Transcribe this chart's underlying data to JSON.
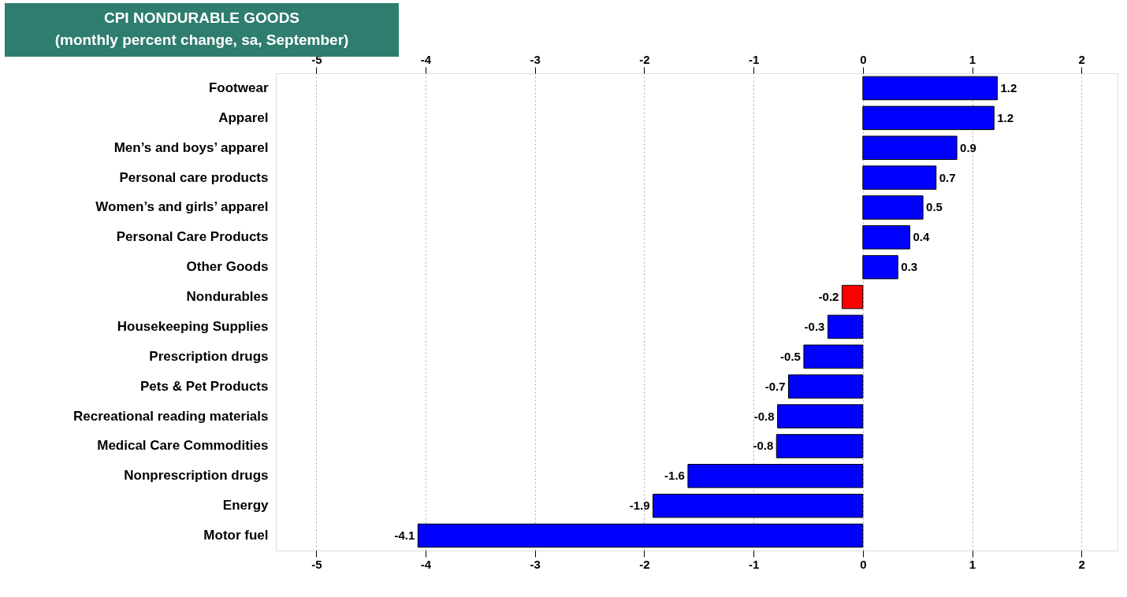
{
  "chart_data": {
    "type": "bar",
    "orientation": "horizontal",
    "title": "CPI NONDURABLE GOODS",
    "subtitle": "(monthly percent change, sa,  September)",
    "categories": [
      "Footwear",
      "Apparel",
      "Men’s and boys’ apparel",
      "Personal care products",
      "Women’s and girls’ apparel",
      "Personal Care Products",
      "Other Goods",
      "Nondurables",
      "Housekeeping Supplies",
      "Prescription drugs",
      "Pets & Pet Products",
      "Recreational reading materials",
      "Medical Care Commodities",
      "Nonprescription drugs",
      "Energy",
      "Motor fuel"
    ],
    "values": [
      1.23,
      1.2,
      0.86,
      0.67,
      0.55,
      0.43,
      0.32,
      -0.19,
      -0.32,
      -0.54,
      -0.68,
      -0.78,
      -0.79,
      -1.6,
      -1.92,
      -4.07
    ],
    "value_labels": [
      "1.2",
      "1.2",
      "0.9",
      "0.7",
      "0.5",
      "0.4",
      "0.3",
      "-0.2",
      "-0.3",
      "-0.5",
      "-0.7",
      "-0.8",
      "-0.8",
      "-1.6",
      "-1.9",
      "-4.1"
    ],
    "colors": [
      "#0000ff",
      "#0000ff",
      "#0000ff",
      "#0000ff",
      "#0000ff",
      "#0000ff",
      "#0000ff",
      "#ff0000",
      "#0000ff",
      "#0000ff",
      "#0000ff",
      "#0000ff",
      "#0000ff",
      "#0000ff",
      "#0000ff",
      "#0000ff"
    ],
    "xlim": [
      -5.37,
      2.33
    ],
    "xticks": [
      -5,
      -4,
      -3,
      -2,
      -1,
      0,
      1,
      2
    ],
    "x2lim": [
      -5.37,
      2.33
    ],
    "x2ticks": [
      -5,
      -4,
      -3,
      -2,
      -1,
      0,
      1,
      2
    ],
    "grid": "x",
    "legend": false
  }
}
